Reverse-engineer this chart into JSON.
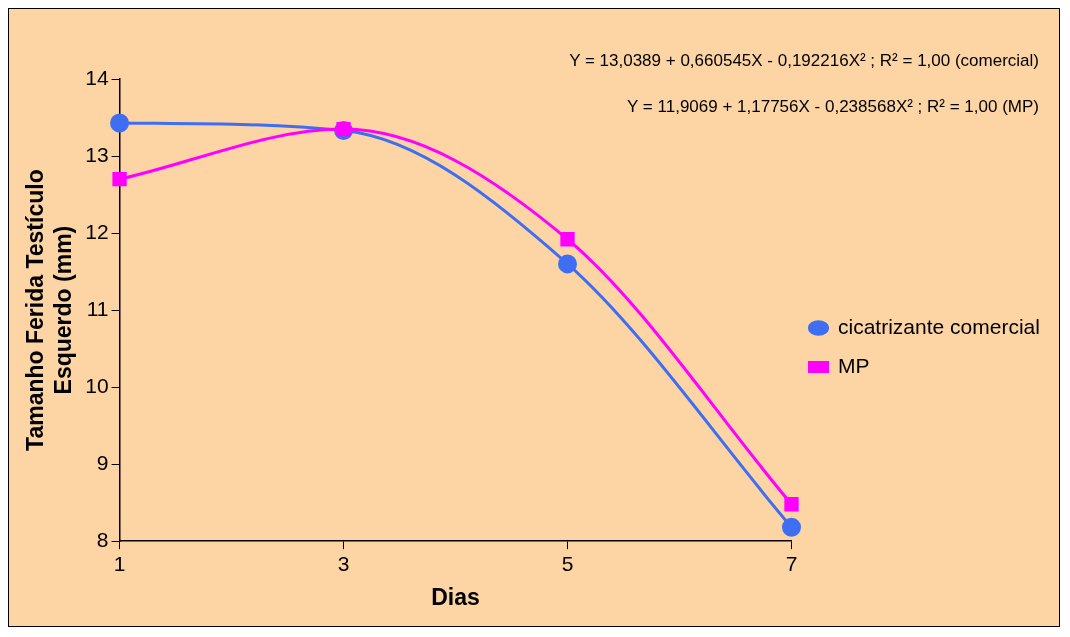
{
  "chart_data": {
    "type": "line",
    "xlabel": "Dias",
    "ylabel": "Tamanho Ferida Testículo Esquerdo (mm)",
    "x": [
      1,
      3,
      5,
      7
    ],
    "xlim": [
      1,
      7
    ],
    "xticks": [
      1,
      3,
      5,
      7
    ],
    "ylim": [
      8,
      14
    ],
    "yticks": [
      8,
      9,
      10,
      11,
      12,
      13,
      14
    ],
    "series": [
      {
        "name": "cicatrizante comercial",
        "color": "#3f6ef2",
        "values": [
          13.43,
          13.33,
          11.6,
          8.18
        ],
        "marker": "circle"
      },
      {
        "name": "MP",
        "color": "#ff00ff",
        "values": [
          12.7,
          13.35,
          11.92,
          8.48
        ],
        "marker": "square"
      }
    ],
    "annotations": [
      "Y = 13,0389 + 0,660545X - 0,192216X² ; R² = 1,00 (comercial)",
      "Y = 11,9069 + 1,17756X - 0,238568X² ; R² = 1,00 (MP)"
    ],
    "legend": "right",
    "grid": false
  }
}
